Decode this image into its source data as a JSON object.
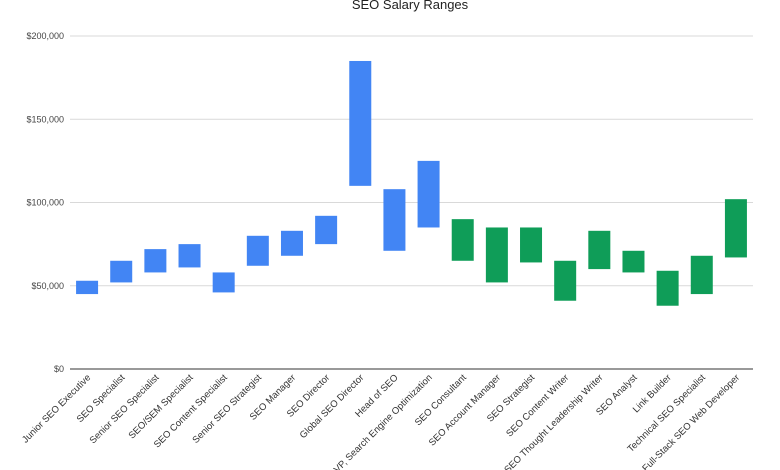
{
  "chart_data": {
    "type": "bar",
    "subtype": "floating-range",
    "title": "SEO Salary Ranges",
    "xlabel": "",
    "ylabel": "",
    "ylim": [
      0,
      200000
    ],
    "yticks": [
      0,
      50000,
      100000,
      150000,
      200000
    ],
    "ytick_labels": [
      "$0",
      "$50,000",
      "$100,000",
      "$150,000",
      "$200,000"
    ],
    "grid": true,
    "legend": "none",
    "colors": {
      "blue": "#4285f4",
      "green": "#0f9d58"
    },
    "categories": [
      "Junior SEO Executive",
      "SEO Specialist",
      "Senior SEO Specialist",
      "SEO/SEM Specialist",
      "SEO Content Specialist",
      "Senior SEO Strategist",
      "SEO Manager",
      "SEO Director",
      "Global SEO Director",
      "Head of SEO",
      "VP, Search Engine Optimization",
      "SEO Consultant",
      "SEO Account Manager",
      "SEO Strategist",
      "SEO Content Writer",
      "SEO Thought Leadership Writer",
      "SEO Analyst",
      "Link Builder",
      "Technical SEO Specialist",
      "Full-Stack SEO Web Developer"
    ],
    "low": [
      45000,
      52000,
      58000,
      61000,
      46000,
      62000,
      68000,
      75000,
      110000,
      71000,
      85000,
      65000,
      52000,
      64000,
      41000,
      60000,
      58000,
      38000,
      45000,
      67000
    ],
    "high": [
      53000,
      65000,
      72000,
      75000,
      58000,
      80000,
      83000,
      92000,
      185000,
      108000,
      125000,
      90000,
      85000,
      85000,
      65000,
      83000,
      71000,
      59000,
      68000,
      102000
    ],
    "bar_colors": [
      "blue",
      "blue",
      "blue",
      "blue",
      "blue",
      "blue",
      "blue",
      "blue",
      "blue",
      "blue",
      "blue",
      "green",
      "green",
      "green",
      "green",
      "green",
      "green",
      "green",
      "green",
      "green"
    ]
  }
}
